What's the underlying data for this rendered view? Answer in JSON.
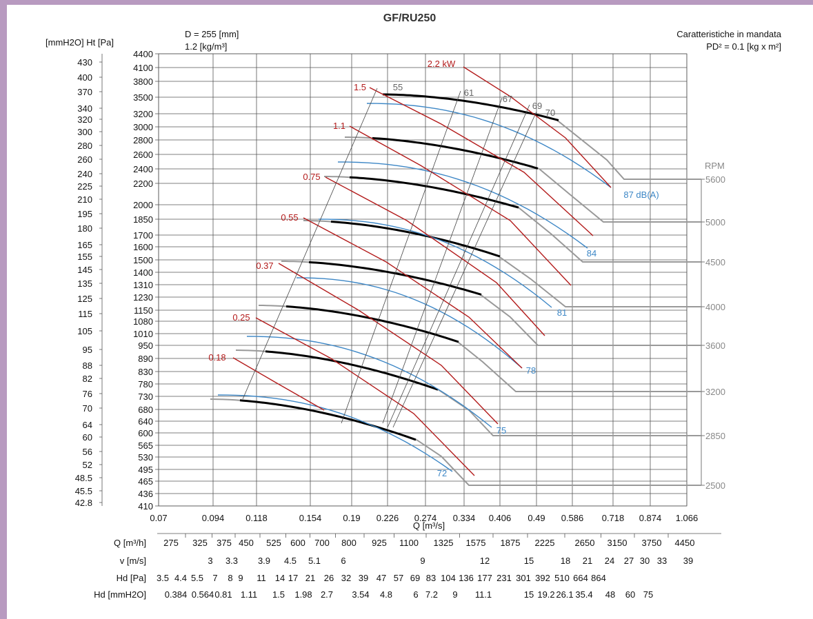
{
  "chart_data": {
    "type": "line",
    "title": "GF/RU250",
    "header_left": [
      "D = 255 [mm]",
      "1.2 [kg/m³]"
    ],
    "header_right": [
      "Caratteristiche in mandata",
      "PD² = 0.1 [kg x m²]"
    ],
    "ylabel": "[mmH2O] Ht [Pa]",
    "xlabel": "Q [m³/s]",
    "rpm_label": "RPM",
    "x_ticks": [
      "0.07",
      "0.094",
      "0.118",
      "0.154",
      "0.19",
      "0.226",
      "0.274",
      "0.334",
      "0.406",
      "0.49",
      "0.586",
      "0.718",
      "0.874",
      "1.066"
    ],
    "y_ticks_pa": [
      "4400",
      "4100",
      "3800",
      "3500",
      "3200",
      "3000",
      "2800",
      "2600",
      "2400",
      "2200",
      "2000",
      "1850",
      "1700",
      "1600",
      "1500",
      "1400",
      "1310",
      "1230",
      "1150",
      "1080",
      "1010",
      "950",
      "890",
      "830",
      "780",
      "730",
      "680",
      "640",
      "600",
      "565",
      "530",
      "495",
      "465",
      "436",
      "410"
    ],
    "y_ticks_mmh2o": [
      "430",
      "400",
      "370",
      "340",
      "320",
      "300",
      "280",
      "260",
      "240",
      "225",
      "210",
      "195",
      "180",
      "165",
      "155",
      "145",
      "135",
      "125",
      "115",
      "105",
      "95",
      "88",
      "82",
      "76",
      "70",
      "64",
      "60",
      "56",
      "52",
      "48.5",
      "45.5",
      "42.8"
    ],
    "rpm_values": [
      "5600",
      "5000",
      "4500",
      "4000",
      "3600",
      "3200",
      "2850",
      "2500"
    ],
    "power_labels": [
      "2.2 kW",
      "1.5",
      "1.1",
      "0.75",
      "0.55",
      "0.37",
      "0.25",
      "0.18"
    ],
    "efficiency_labels": [
      "55",
      "61",
      "67",
      "69",
      "70"
    ],
    "noise_labels": [
      "87 dB(A)",
      "84",
      "81",
      "78",
      "75",
      "72"
    ],
    "curves": [
      {
        "rpm": "5600",
        "pressure_max_pa": 3500,
        "q_range": [
          0.204,
          0.718
        ]
      },
      {
        "rpm": "5000",
        "pressure_max_pa": 2850,
        "q_range": [
          0.18,
          0.63
        ]
      },
      {
        "rpm": "4500",
        "pressure_max_pa": 2300,
        "q_range": [
          0.165,
          0.575
        ]
      },
      {
        "rpm": "4000",
        "pressure_max_pa": 1830,
        "q_range": [
          0.145,
          0.52
        ]
      },
      {
        "rpm": "3600",
        "pressure_max_pa": 1480,
        "q_range": [
          0.128,
          0.47
        ]
      },
      {
        "rpm": "3200",
        "pressure_max_pa": 1170,
        "q_range": [
          0.112,
          0.42
        ]
      },
      {
        "rpm": "2850",
        "pressure_max_pa": 930,
        "q_range": [
          0.1,
          0.37
        ]
      },
      {
        "rpm": "2500",
        "pressure_max_pa": 720,
        "q_range": [
          0.088,
          0.33
        ]
      }
    ],
    "bottom_rows": [
      {
        "label": "Q [m³/h]",
        "values": [
          "275",
          "325",
          "375",
          "450",
          "525",
          "600",
          "700",
          "800",
          "925",
          "1100",
          "1325",
          "1575",
          "1875",
          "2225",
          "2650",
          "3150",
          "3750",
          "4450"
        ]
      },
      {
        "label": "v [m/s]",
        "values": [
          "3",
          "3.3",
          "3.9",
          "4.5",
          "5.1",
          "6",
          "9",
          "12",
          "15",
          "18",
          "21",
          "24",
          "27",
          "30",
          "33",
          "39"
        ]
      },
      {
        "label": "Hd [Pa]",
        "values": [
          "3.5",
          "4.4",
          "5.5",
          "7",
          "8",
          "9",
          "11",
          "14",
          "17",
          "21",
          "26",
          "32",
          "39",
          "47",
          "57",
          "69",
          "83",
          "104",
          "136",
          "177",
          "231",
          "301",
          "392",
          "510",
          "664",
          "864"
        ]
      },
      {
        "label": "Hd [mmH2O]",
        "values": [
          "0.384",
          "0.564",
          "0.81",
          "1.11",
          "1.5",
          "1.98",
          "2.7",
          "3.54",
          "4.8",
          "6",
          "7.2",
          "9",
          "11.1",
          "15",
          "19.2",
          "26.1",
          "35.4",
          "48",
          "60",
          "75"
        ]
      }
    ],
    "colors": {
      "rpm_curve": "#999999",
      "operating": "#000000",
      "noise": "#3d87c6",
      "power": "#b31b1b",
      "frame": "#b89ac0"
    }
  }
}
